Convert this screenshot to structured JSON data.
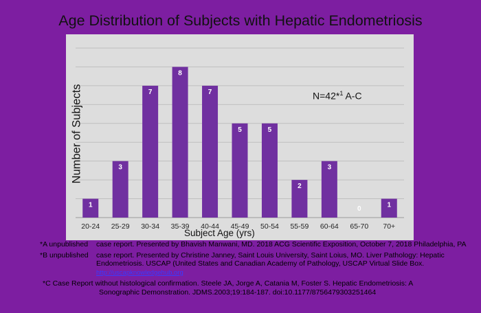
{
  "chart_data": {
    "type": "bar",
    "title": "Age Distribution of Subjects with Hepatic Endometriosis",
    "xlabel": "Subject Age (yrs)",
    "ylabel": "Number of Subjects",
    "categories": [
      "20-24",
      "25-29",
      "30-34",
      "35-39",
      "40-44",
      "45-49",
      "50-54",
      "55-59",
      "60-64",
      "65-70",
      "70+"
    ],
    "values": [
      1,
      3,
      7,
      8,
      7,
      5,
      5,
      2,
      3,
      0,
      1
    ],
    "ylim": [
      0,
      9
    ],
    "grid": true,
    "annotation": "N=42*",
    "annotation_sup": "1",
    "annotation_suffix": " A-C",
    "colors": {
      "bar": "#7030a0",
      "panel": "#dddddd",
      "grid": "#bfbfbf",
      "label_text": "#ffffff"
    }
  },
  "references": {
    "a_tag": "*A unpublished",
    "a_text": "case report. Presented by Bhavish Manwani, MD. 2018 ACG Scientific Exposition, October 7, 2018 Philadelphia, PA",
    "b_tag": "*B unpublished",
    "b_text": "case report. Presented by Christine Janney, Saint Louis University, Saint Loius, MO. Liver Pathology: Hepatic Endometriosis. USCAP (United States and Canadian Academy of Pathology, USCAP Virtual Slide Box.",
    "b_url": "http://uscapknowledgehub.org",
    "c_tag": "*C Case Report without histological confirmation.",
    "c_text1": "Steele JA, Jorge A, Catania M, Foster S. Hepatic Endometriosis: A",
    "c_text2": "Sonographic Demonstration. JDMS.2003;19:184-187.    doi:10.1177/8756479303251464"
  }
}
